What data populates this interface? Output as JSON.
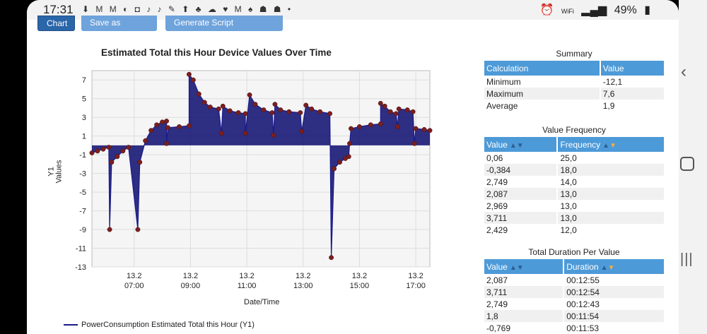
{
  "status": {
    "time": "17:31",
    "notif_icons": "⬇ M M ◐ ◘ ♪ ♪ ✎ ⬆ ♣ ☁ ♥ M ♠ ☗ ☗ • ",
    "wifi_label": "WiFi",
    "battery": "49%"
  },
  "toolbar": {
    "chart_label": "Chart",
    "favorite_label": "Save as Favorite",
    "script_label": "Generate Script Command"
  },
  "chart_title": "Estimated Total this Hour Device Values Over Time",
  "chart_xlabel": "Date/Time",
  "chart_ylabel_line1": "Y1",
  "chart_ylabel_line2": "Values",
  "legend_label": "PowerConsumption Estimated Total this Hour (Y1)",
  "chart_data": {
    "type": "line",
    "ylim": [
      -13,
      8
    ],
    "y_ticks": [
      7,
      5,
      3,
      1,
      -1,
      -3,
      -5,
      -7,
      -9,
      -11,
      -13
    ],
    "x_ticks": [
      {
        "line1": "13.2",
        "line2": "07:00"
      },
      {
        "line1": "13.2",
        "line2": "09:00"
      },
      {
        "line1": "13.2",
        "line2": "11:00"
      },
      {
        "line1": "13.2",
        "line2": "13:00"
      },
      {
        "line1": "13.2",
        "line2": "15:00"
      },
      {
        "line1": "13.2",
        "line2": "17:00"
      }
    ],
    "x_hours_range": [
      5.5,
      17.5
    ],
    "grid": true,
    "series": [
      {
        "name": "PowerConsumption Estimated Total this Hour (Y1)",
        "points": [
          [
            5.5,
            -0.8
          ],
          [
            5.7,
            -0.6
          ],
          [
            5.9,
            -0.4
          ],
          [
            6.1,
            -0.2
          ],
          [
            6.13,
            -9.0
          ],
          [
            6.2,
            -1.8
          ],
          [
            6.4,
            -1.2
          ],
          [
            6.6,
            -0.6
          ],
          [
            6.8,
            -0.2
          ],
          [
            7.13,
            -9.0
          ],
          [
            7.2,
            -1.8
          ],
          [
            7.4,
            0.5
          ],
          [
            7.6,
            1.6
          ],
          [
            7.8,
            2.2
          ],
          [
            8.0,
            2.5
          ],
          [
            8.15,
            2.6
          ],
          [
            8.15,
            0.2
          ],
          [
            8.2,
            1.9
          ],
          [
            8.6,
            2.0
          ],
          [
            8.95,
            2.1
          ],
          [
            8.95,
            7.6
          ],
          [
            9.1,
            7.0
          ],
          [
            9.3,
            5.5
          ],
          [
            9.5,
            4.6
          ],
          [
            9.7,
            4.1
          ],
          [
            10.0,
            3.9
          ],
          [
            10.1,
            1.3
          ],
          [
            10.15,
            4.2
          ],
          [
            10.4,
            3.7
          ],
          [
            10.7,
            3.5
          ],
          [
            10.95,
            3.4
          ],
          [
            10.95,
            1.3
          ],
          [
            11.1,
            5.4
          ],
          [
            11.3,
            4.4
          ],
          [
            11.6,
            3.8
          ],
          [
            11.9,
            3.5
          ],
          [
            11.95,
            1.1
          ],
          [
            12.0,
            4.4
          ],
          [
            12.2,
            3.8
          ],
          [
            12.5,
            3.6
          ],
          [
            12.9,
            3.5
          ],
          [
            12.95,
            1.5
          ],
          [
            13.1,
            4.3
          ],
          [
            13.3,
            3.9
          ],
          [
            13.6,
            3.6
          ],
          [
            13.95,
            3.4
          ],
          [
            14.0,
            -12.0
          ],
          [
            14.1,
            -2.5
          ],
          [
            14.3,
            -1.8
          ],
          [
            14.5,
            -1.4
          ],
          [
            14.62,
            -1.2
          ],
          [
            14.65,
            0.2
          ],
          [
            14.7,
            1.8
          ],
          [
            15.0,
            2.0
          ],
          [
            15.4,
            2.2
          ],
          [
            15.75,
            2.3
          ],
          [
            15.75,
            4.5
          ],
          [
            15.9,
            4.2
          ],
          [
            16.1,
            3.6
          ],
          [
            16.3,
            3.4
          ],
          [
            16.35,
            2.0
          ],
          [
            16.4,
            3.9
          ],
          [
            16.7,
            3.8
          ],
          [
            16.9,
            3.6
          ],
          [
            16.95,
            0.2
          ],
          [
            17.0,
            1.8
          ],
          [
            17.3,
            1.7
          ],
          [
            17.5,
            1.6
          ]
        ]
      }
    ]
  },
  "summary": {
    "title": "Summary",
    "headers": [
      "Calculation",
      "Value"
    ],
    "rows": [
      [
        "Minimum",
        "-12,1"
      ],
      [
        "Maximum",
        "7,6"
      ],
      [
        "Average",
        "1,9"
      ]
    ]
  },
  "value_frequency": {
    "title": "Value Frequency",
    "headers": [
      "Value",
      "Frequency"
    ],
    "rows": [
      [
        "0,06",
        "25,0"
      ],
      [
        "-0,384",
        "18,0"
      ],
      [
        "2,749",
        "14,0"
      ],
      [
        "2,087",
        "13,0"
      ],
      [
        "2,969",
        "13,0"
      ],
      [
        "3,711",
        "13,0"
      ],
      [
        "2,429",
        "12,0"
      ]
    ]
  },
  "total_duration": {
    "title": "Total Duration Per Value",
    "headers": [
      "Value",
      "Duration"
    ],
    "rows": [
      [
        "2,087",
        "00:12:55"
      ],
      [
        "3,711",
        "00:12:54"
      ],
      [
        "2,749",
        "00:12:43"
      ],
      [
        "1,8",
        "00:11:54"
      ],
      [
        "-0,769",
        "00:11:53"
      ]
    ]
  },
  "colors": {
    "line": "#1a1a8c",
    "fill": "#0a0a6e",
    "marker": "#7a1f1f",
    "header": "#4d9ad8",
    "button": "#2a66a8"
  }
}
